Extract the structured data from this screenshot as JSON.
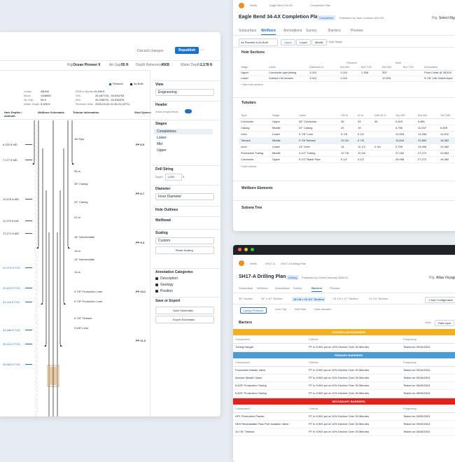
{
  "left": {
    "toolbar": {
      "discard": "Discard changes",
      "publish": "Republish"
    },
    "info": [
      {
        "label": "Rig",
        "value": "Ocean Pioneer II"
      },
      {
        "label": "Air Gap",
        "value": "55 ft"
      },
      {
        "label": "Depth Reference",
        "value": "RKB"
      },
      {
        "label": "Water Depth",
        "value": "2,178 ft"
      }
    ],
    "legend": [
      "Planned",
      "As Built"
    ],
    "meta": [
      {
        "label": "Lease",
        "value": "AB184"
      },
      {
        "label": "Block",
        "value": "GA6855"
      },
      {
        "label": "Air Gap",
        "value": "55 ft"
      },
      {
        "label": "Water Depth",
        "value": "5,495 ft"
      }
    ],
    "meta2": [
      {
        "label": "RKB to Mudline",
        "value": "5,495 ft"
      },
      {
        "label": "SHL",
        "value": "26.487718, -94.534753"
      },
      {
        "label": "BHL",
        "value": "26.298076, -94.538376"
      },
      {
        "label": "Revision Date",
        "value": "2025-03-25 21:36:21 (UTC)"
      }
    ],
    "columns": [
      "Hole Depths / Azimuth",
      "Wellbore Schematic",
      "Tubular Information",
      "Shut System"
    ],
    "depths": [
      "6,332 ft MD",
      "7,177 ft MD",
      "10,576 ft MD",
      "11,379 ft MD",
      "17,271 ft MD",
      "22,374 ft TVD",
      "22,623 ft TVD",
      "24,116 ft TVD",
      "24,686 ft TVD",
      "25,191 ft TVD",
      "26,863 ft TVD"
    ],
    "tubulars": [
      "Jet Pipe",
      "36-in",
      "28\" Casing",
      "22\" Casing",
      "22-in",
      "16\" Intermediate",
      "16-in",
      "14\" Intermediate",
      "14-in",
      "9 7/8\" Production Liner",
      "9 7/8\" Production Liner",
      "9 7/8\" Tieback",
      "9 5/8\" Liner"
    ],
    "shut": [
      "PP 8.5",
      "PP 8.7",
      "PP 9.4",
      "PP 10.1",
      "PP 11.2"
    ],
    "panel": {
      "view": {
        "title": "View",
        "value": "Engineering"
      },
      "header": {
        "title": "Header",
        "toggle": "Show empty fields"
      },
      "stages": {
        "title": "Stages",
        "items": [
          "Completions",
          "Lower",
          "Mid",
          "Upper"
        ]
      },
      "drill": {
        "title": "Drill String",
        "label": "Depth",
        "value": "1,000",
        "unit": "ft"
      },
      "diameter": {
        "title": "Diameter",
        "value": "Inner Diameter"
      },
      "outlines": "Hole Outlines",
      "wellhead": "Wellhead",
      "scaling": {
        "title": "Scaling",
        "value": "Custom",
        "button": "Reset Scaling"
      },
      "annotations": {
        "title": "Annotation Categories",
        "items": [
          "Description",
          "Geology",
          "Position"
        ]
      },
      "save": {
        "title": "Save or Export",
        "buttons": [
          "Save Schematic",
          "Export Schematic"
        ]
      }
    }
  },
  "completion": {
    "breadcrumb": [
      "Wells",
      "Eagle Bend 34-AX",
      "Completion Plan"
    ],
    "title": "Eagle Bend 34-AX Completion Plan",
    "badge": "Completion",
    "published": "Published by Jack Johnson 6/21/25",
    "rig": {
      "label": "Rig",
      "value": "Select Rig"
    },
    "tabs": [
      "Subsurface",
      "Wellbore",
      "Annotations",
      "Survey",
      "Barriers",
      "Preview"
    ],
    "filter": "As Planned & As Built",
    "stages": [
      "Upper",
      "Lower",
      "Middle"
    ],
    "add_stage": "+ Add Stage",
    "hole": {
      "title": "Hole Sections",
      "groups": [
        "Planned",
        "Built"
      ],
      "columns": [
        "Stage",
        "Label",
        "Diameter in",
        "Bot MD",
        "Bot TVD",
        "Bot MD",
        "Bot TVD",
        "Annotation"
      ],
      "rows": [
        [
          "Upper",
          "Conductor pipe jetting",
          "1.024",
          "1.024",
          "1.358",
          "392",
          "",
          "Float Collar @ 28,634"
        ],
        [
          "Lower",
          "Surface Ctrl section",
          "1.024",
          "1.024",
          "",
          "12,633",
          "",
          "9-7/8\" 15k GateKeeper"
        ]
      ],
      "add": "+ Add hole section"
    },
    "tubulars": {
      "title": "Tubulars",
      "columns": [
        "Type",
        "Stage",
        "Label",
        "OD in",
        "ID in",
        "Drift ID in",
        "Top MD",
        "Bot MD",
        "ToC MD"
      ],
      "rows": [
        [
          "Conductor",
          "Upper",
          "36\" Conductor",
          "36",
          "33",
          "36",
          "5,403",
          "5,881",
          ""
        ],
        [
          "Casing",
          "Middle",
          "22\" Casing",
          "22",
          "19",
          "",
          "5,756",
          "11,037",
          "5,409"
        ],
        [
          "Liner",
          "Lower",
          "9 7/8\" Liner",
          "9 7/8",
          "8 1/2",
          "",
          "10,905",
          "14,496",
          "11,002"
        ],
        [
          "Tieback",
          "Middle",
          "9 7/8 Tieback",
          "10 3/4",
          "9 7/8",
          "",
          "10,644",
          "22,863",
          "16,382"
        ],
        [
          "Liner",
          "Lower",
          "14\" Liner",
          "14",
          "11 1/2",
          "2 3/4",
          "5,795",
          "14,496",
          "10,382"
        ],
        [
          "Production Tubing",
          "Middle",
          "4 1/2\" Tubing",
          "12 7/8",
          "10 3/4",
          "",
          "27,182",
          "27,272",
          "22,863"
        ],
        [
          "Conductor",
          "Upper",
          "5 1/2\" Blank Pipe",
          "5 1/2",
          "4 1/2",
          "",
          "26,958",
          "27,272",
          "16,382"
        ]
      ],
      "add": "+ Add tubular"
    },
    "collapsed": [
      "Wellbore Elements",
      "Subsea Tree"
    ]
  },
  "drilling": {
    "breadcrumb": [
      "Wells",
      "SH17-A",
      "SH17-A Drilling Plan"
    ],
    "title": "SH17-A Drilling Plan",
    "badge": "Drilling",
    "published": "Published by Grant Holloway 8/26/24",
    "rig": {
      "label": "Rig",
      "value": "Atlas Voyager"
    },
    "tabs": [
      "Subsurface",
      "Wellbore",
      "Annotations",
      "Survey",
      "Barriers",
      "Preview"
    ],
    "sections": [
      "36\" Section",
      "26\" x 32\" Section",
      "18 1/8 x 16 1/2\" Section",
      "14 1/2 x 17\" Section",
      "12 1/4\" Section"
    ],
    "add_config": "+ Add Configuration",
    "scenarios": [
      "Casing Pressure",
      "Liner Top",
      "Drill Pipe"
    ],
    "add_scenario": "+ Add scenario",
    "barriers_title": "Barriers",
    "view": "View",
    "data_input": "Data Input",
    "columns": [
      "Component",
      "Criteria",
      "Frequency"
    ],
    "groups": [
      {
        "name": "CROSSFLOW BARRIERS",
        "color": "#f2b01e",
        "rows": [
          [
            "Tubing Hanger",
            "PT to 5,900 psi w/ 10% Decline Over 30 Minutes",
            "Tested on 09/16/2024"
          ]
        ]
      },
      {
        "name": "PRIMARY BARRIERS",
        "color": "#4a9bd6",
        "rows": [
          [
            "Production Master Valve",
            "PT to 5,900 psi w/ 10% Decline Over 30 Minutes",
            "Tested on 09/16/2024"
          ],
          [
            "Annular Master Valve",
            "PT to 5,900 psi w/ 10% Decline Over 30 Minutes",
            "Tested on 09/16/2024"
          ],
          [
            "6.625\" Production Tubing",
            "PT to 5,900 psi w/ 10% Decline Over 30 Minutes",
            "Tested on 08/28/2024"
          ],
          [
            "6.625\" Production Tubing",
            "PT to 5,900 psi w/ 10% Decline Over 30 Minutes",
            "Tested on 08/28/2024"
          ]
        ]
      },
      {
        "name": "SECONDARY BARRIERS",
        "color": "#e3201b",
        "rows": [
          [
            "HP1 Production Packer",
            "PT to 5,900 psi w/ 10% Decline Over 30 Minutes",
            "Tested on 09/05/2024"
          ],
          [
            "HES Recloseable Flow Port Isolation Valve",
            "PT to 5,900 psi w/ 10% Decline Over 30 Minutes",
            "Tested on 09/05/2024"
          ],
          [
            "10 7/8\" Tieback",
            "PT to 5,900 psi w/ 10% Decline Over 30 Minutes",
            "Tested on 08/28/2024"
          ]
        ]
      }
    ]
  }
}
